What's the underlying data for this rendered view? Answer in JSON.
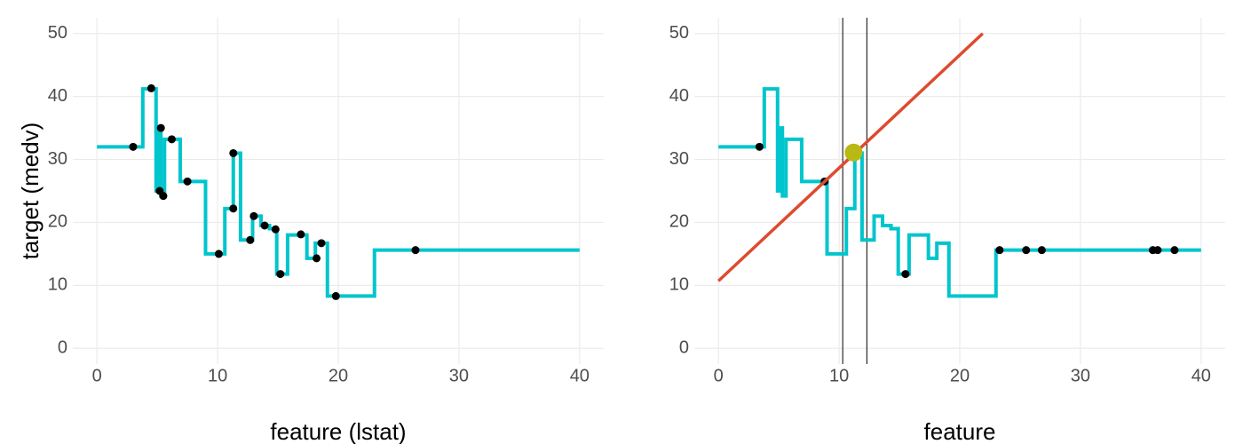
{
  "chart_data": [
    {
      "type": "line",
      "x_label": "feature (lstat)",
      "y_label": "target (medv)",
      "xlim": [
        -2,
        42
      ],
      "ylim": [
        -2.5,
        52.5
      ],
      "xticks": [
        0,
        10,
        20,
        30,
        40
      ],
      "yticks": [
        0,
        10,
        20,
        30,
        40,
        50
      ],
      "grid": true,
      "series": [
        {
          "kind": "line",
          "color": "#00c5cd",
          "width": 4,
          "x": [
            0,
            3.8,
            3.8,
            4.9,
            4.9,
            5.1,
            5.1,
            5.3,
            5.3,
            5.6,
            5.6,
            6.9,
            6.9,
            9.0,
            9.0,
            10.6,
            10.6,
            11.3,
            11.3,
            11.9,
            11.9,
            12.9,
            12.9,
            13.6,
            13.6,
            14.3,
            14.3,
            14.9,
            14.9,
            15.8,
            15.8,
            17.4,
            17.4,
            18.1,
            18.1,
            19.1,
            19.1,
            23.0,
            23.0,
            40
          ],
          "values": [
            32,
            32,
            41.2,
            41.2,
            25,
            25,
            35,
            35,
            24.2,
            24.2,
            33.2,
            33.2,
            26.5,
            26.5,
            15,
            15,
            22.2,
            22.2,
            31,
            31,
            17.2,
            17.2,
            21,
            21,
            19.5,
            19.5,
            19,
            19,
            11.8,
            11.8,
            18,
            18,
            14.3,
            14.3,
            16.7,
            16.7,
            8.3,
            8.3,
            15.6,
            15.6
          ]
        },
        {
          "kind": "scatter",
          "color": "#000000",
          "point_size": 4.5,
          "x": [
            3,
            4.5,
            5.3,
            5.2,
            5.5,
            6.2,
            7.5,
            10.1,
            11.3,
            11.3,
            12.7,
            13,
            13.9,
            14.8,
            15.2,
            16.9,
            18.2,
            18.6,
            19.8,
            26.4
          ],
          "values": [
            32,
            41.3,
            35,
            25,
            24.2,
            33.2,
            26.5,
            15,
            31,
            22.2,
            17.2,
            21,
            19.5,
            18.9,
            11.8,
            18.1,
            14.3,
            16.7,
            8.3,
            15.6
          ]
        }
      ]
    },
    {
      "type": "line",
      "x_label": "feature",
      "xlim": [
        -2,
        42
      ],
      "ylim": [
        -2.5,
        52.5
      ],
      "xticks": [
        0,
        10,
        20,
        30,
        40
      ],
      "yticks": [
        0,
        10,
        20,
        30,
        40,
        50
      ],
      "grid": true,
      "vlines": [
        10.3,
        12.3
      ],
      "series": [
        {
          "kind": "line",
          "color": "#00c5cd",
          "width": 4,
          "x": [
            0,
            3.8,
            3.8,
            4.9,
            4.9,
            5.1,
            5.1,
            5.3,
            5.3,
            5.6,
            5.6,
            6.9,
            6.9,
            9.0,
            9.0,
            10.6,
            10.6,
            11.3,
            11.3,
            11.9,
            11.9,
            12.9,
            12.9,
            13.6,
            13.6,
            14.3,
            14.3,
            14.9,
            14.9,
            15.8,
            15.8,
            17.4,
            17.4,
            18.1,
            18.1,
            19.1,
            19.1,
            23.0,
            23.0,
            40
          ],
          "values": [
            32,
            32,
            41.2,
            41.2,
            25,
            25,
            35,
            35,
            24.2,
            24.2,
            33.2,
            33.2,
            26.5,
            26.5,
            15,
            15,
            22.2,
            22.2,
            31,
            31,
            17.2,
            17.2,
            21,
            21,
            19.5,
            19.5,
            19,
            19,
            11.8,
            11.8,
            18,
            18,
            14.3,
            14.3,
            16.7,
            16.7,
            8.3,
            8.3,
            15.6,
            15.6
          ]
        },
        {
          "kind": "scatter",
          "color": "#000000",
          "point_size": 4.5,
          "x": [
            3.4,
            8.8,
            15.5,
            23.3,
            25.5,
            26.8,
            36,
            36.4,
            37.8
          ],
          "values": [
            32,
            26.5,
            11.8,
            15.6,
            15.6,
            15.6,
            15.6,
            15.6,
            15.6
          ]
        },
        {
          "kind": "line",
          "color": "#dd4b2f",
          "width": 3.5,
          "x": [
            0,
            21.9
          ],
          "values": [
            10.7,
            50
          ]
        },
        {
          "kind": "scatter",
          "color": "#b8b913",
          "point_size": 10,
          "x": [
            11.2
          ],
          "values": [
            31.1
          ]
        }
      ]
    }
  ]
}
